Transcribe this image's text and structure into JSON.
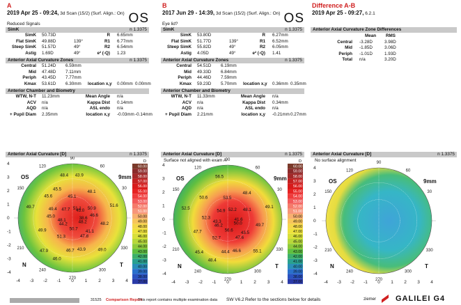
{
  "colA": {
    "letter": "A",
    "header_main": "2019 Apr 25 - 09:24,",
    "header_sub": " 3d Scan (15/2) (Surf. Align.: On)",
    "eye": "OS",
    "note": "Reduced Signals",
    "simk_title": "SimK",
    "simk_n": "n 1.3375",
    "simk_rows": [
      [
        "SimK",
        "50.73D",
        "",
        "R",
        "6.65mm"
      ],
      [
        "Flat SimK",
        "49.88D",
        "139°",
        "R1",
        "6.77mm"
      ],
      [
        "Steep SimK",
        "51.57D",
        "49°",
        "R2",
        "6.54mm"
      ],
      [
        "Astig",
        "1.69D",
        "49°",
        "e² (-Q)",
        "1.23"
      ]
    ],
    "zones_title": "Anterior Axial Curvature Zones",
    "zones_n": "n 1.3375",
    "zones_rows": [
      [
        "Central",
        "51.24D",
        "6.59mm"
      ],
      [
        "Mid",
        "47.48D",
        "7.11mm"
      ],
      [
        "Periph",
        "43.45D",
        "7.77mm"
      ]
    ],
    "kmax": [
      "Kmax",
      "53.61D",
      "6.30mm",
      "location x,y",
      "0.00mm",
      "0.00mm"
    ],
    "bio_title": "Anterior Chamber and Biometry",
    "bio_rows": [
      [
        "WTW, N-T",
        "11.23mm",
        "Mean Angle",
        "n/a"
      ],
      [
        "ACV",
        "n/a",
        "Kappa Dist",
        "0.14mm"
      ],
      [
        "AQD",
        "n/a",
        "ASL endo",
        "n/a"
      ],
      [
        "+ Pupil Diam",
        "2.35mm",
        "location x,y",
        "-0.03mm",
        "-0.14mm"
      ]
    ],
    "map_title": "Anterior Axial Curvature [D]",
    "map_n": "n 1.3375",
    "map_values": [
      "38.6",
      "41.1",
      "43.9",
      "46.0",
      "44.2",
      "45.0",
      "45.6",
      "48.4",
      "51.1",
      "50.9",
      "48.2",
      "49.0",
      "50.7",
      "51.3",
      "49.9",
      "49.7",
      "47.7",
      "45.1",
      "48.1",
      "51.6",
      "48.2",
      "47.8",
      "46.7",
      "47.9",
      "48.1",
      "49.4",
      "45.5",
      "43.9",
      "45.0",
      "46.6"
    ],
    "map_overlay": "9mm",
    "nt": [
      "N",
      "T"
    ]
  },
  "colB": {
    "letter": "B",
    "header_main": "2017 Jun 29 - 14:39,",
    "header_sub": " 3d Scan (15/2) (Surf. Align.: On)",
    "eye": "OS",
    "note": "Eye lid?",
    "simk_title": "SimK",
    "simk_n": "n 1.3375",
    "simk_rows": [
      [
        "SimK",
        "53.80D",
        "",
        "R",
        "6.27mm"
      ],
      [
        "Flat SimK",
        "51.77D",
        "139°",
        "R1",
        "6.52mm"
      ],
      [
        "Steep SimK",
        "55.82D",
        "49°",
        "R2",
        "6.05mm"
      ],
      [
        "Astig",
        "4.05D",
        "49°",
        "e² (-Q)",
        "1.41"
      ]
    ],
    "zones_title": "Anterior Axial Curvature Zones",
    "zones_n": "n 1.3375",
    "zones_rows": [
      [
        "Central",
        "54.51D",
        "6.19mm"
      ],
      [
        "Mid",
        "49.33D",
        "6.84mm"
      ],
      [
        "Periph",
        "44.46D",
        "7.59mm"
      ]
    ],
    "kmax": [
      "Kmax",
      "59.23D",
      "5.70mm",
      "location x,y",
      "0.36mm",
      "0.35mm"
    ],
    "bio_title": "Anterior Chamber and Biometry",
    "bio_rows": [
      [
        "WTW, N-T",
        "11.33mm",
        "Mean Angle",
        "n/a"
      ],
      [
        "ACV",
        "n/a",
        "Kappa Dist",
        "0.34mm"
      ],
      [
        "AQD",
        "n/a",
        "ASL endo",
        "n/a"
      ],
      [
        "+ Pupil Diam",
        "2.21mm",
        "location x,y",
        "-0.21mm",
        "0.27mm"
      ]
    ],
    "map_title": "Anterior Axial Curvature [D]",
    "map_n": "n 1.3375",
    "map_warning": "Surface not aligned with exam A",
    "map_values": [
      "41.6",
      "43.5",
      "46.6",
      "48.4",
      "46.2",
      "52.3",
      "50.6",
      "56.5",
      "52.2",
      "48.1",
      "49.7",
      "55.1",
      "56.6",
      "52.7",
      "47.7",
      "52.5",
      "54.9",
      "53.5",
      "48.4",
      "49.1",
      "50.0",
      "47.6",
      "44.4",
      "45.4",
      "43.3"
    ],
    "map_overlay": "9mm",
    "nt": [
      "N",
      "T"
    ]
  },
  "colD": {
    "letter": "Difference A-B",
    "header_main": "2019 Apr 25 - 09:27,",
    "header_sub": " 6.2.1",
    "zones_title": "Anterior Axial Curvature Zone Differences",
    "cols": [
      "Mean",
      "RMS"
    ],
    "rows": [
      [
        "Central",
        "-3.28D",
        "3.98D"
      ],
      [
        "Mid",
        "-1.85D",
        "3.06D"
      ],
      [
        "Periph",
        "-1.01D",
        "1.93D"
      ],
      [
        "Total",
        "n/a",
        "3.20D"
      ]
    ],
    "map_title": "Anterior Axial Curvature [D]",
    "map_n": "n 1.3375",
    "map_warning": "No surface alignment",
    "map_overlay": "9mm",
    "eye": "OS",
    "nt": [
      "N",
      "T"
    ]
  },
  "scale_main": [
    "D",
    "60.00",
    "59.00",
    "58.00",
    "57.00",
    "56.00",
    "55.00",
    "54.00",
    "53.00",
    "52.00",
    "51.00",
    "50.00",
    "49.00",
    "48.00",
    "47.00",
    "46.00",
    "45.00",
    "44.00",
    "43.00",
    "42.00",
    "41.00",
    "40.00",
    "39.00",
    "38.00",
    "37.00"
  ],
  "axis_ticks": [
    "-4",
    "-3",
    "-2",
    "-1",
    "0",
    "1",
    "2",
    "3",
    "4"
  ],
  "angle_labels": [
    "90",
    "60",
    "30",
    "330",
    "300",
    "270",
    "240",
    "210",
    "150",
    "120"
  ],
  "footer": {
    "id": "31525",
    "report": "Comparison Report",
    "notice": "This report contains multiple examination data",
    "version": "SW V6.2",
    "refer": "Refer to the sections below for details",
    "brand_small": "ziemer",
    "brand": "GALILEI G4"
  },
  "colors": {
    "accent": "#d02020",
    "bar": "#c9c9c9"
  }
}
